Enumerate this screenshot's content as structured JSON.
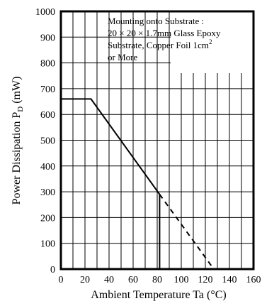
{
  "chart_data": {
    "type": "line",
    "title": "",
    "xlabel": "Ambient Temperature  Ta  (°C)",
    "ylabel_main": "Power Dissipation  P",
    "ylabel_sub": "D",
    "ylabel_unit": "  (mW)",
    "xlim": [
      0,
      160
    ],
    "ylim": [
      0,
      1000
    ],
    "x_ticks": [
      0,
      20,
      40,
      60,
      80,
      100,
      120,
      140,
      160
    ],
    "y_ticks": [
      0,
      100,
      200,
      300,
      400,
      500,
      600,
      700,
      800,
      900,
      1000
    ],
    "x_grid_step": 10,
    "y_grid_step": 100,
    "grid": true,
    "series": [
      {
        "style": "solid",
        "x": [
          0,
          25,
          82
        ],
        "y": [
          660,
          660,
          290
        ]
      },
      {
        "style": "dashed",
        "x": [
          82,
          127
        ],
        "y": [
          290,
          0
        ]
      },
      {
        "style": "solid",
        "x": [
          82,
          82
        ],
        "y": [
          290,
          0
        ]
      }
    ],
    "annotation": {
      "placement": "top-right",
      "line1": "Mounting onto Substrate :",
      "line2": "20 × 20 × 1.7mm Glass Epoxy",
      "line3_main": "Substrate, Copper Foil 1cm",
      "line3_sup": "2",
      "line4": "or More"
    }
  }
}
